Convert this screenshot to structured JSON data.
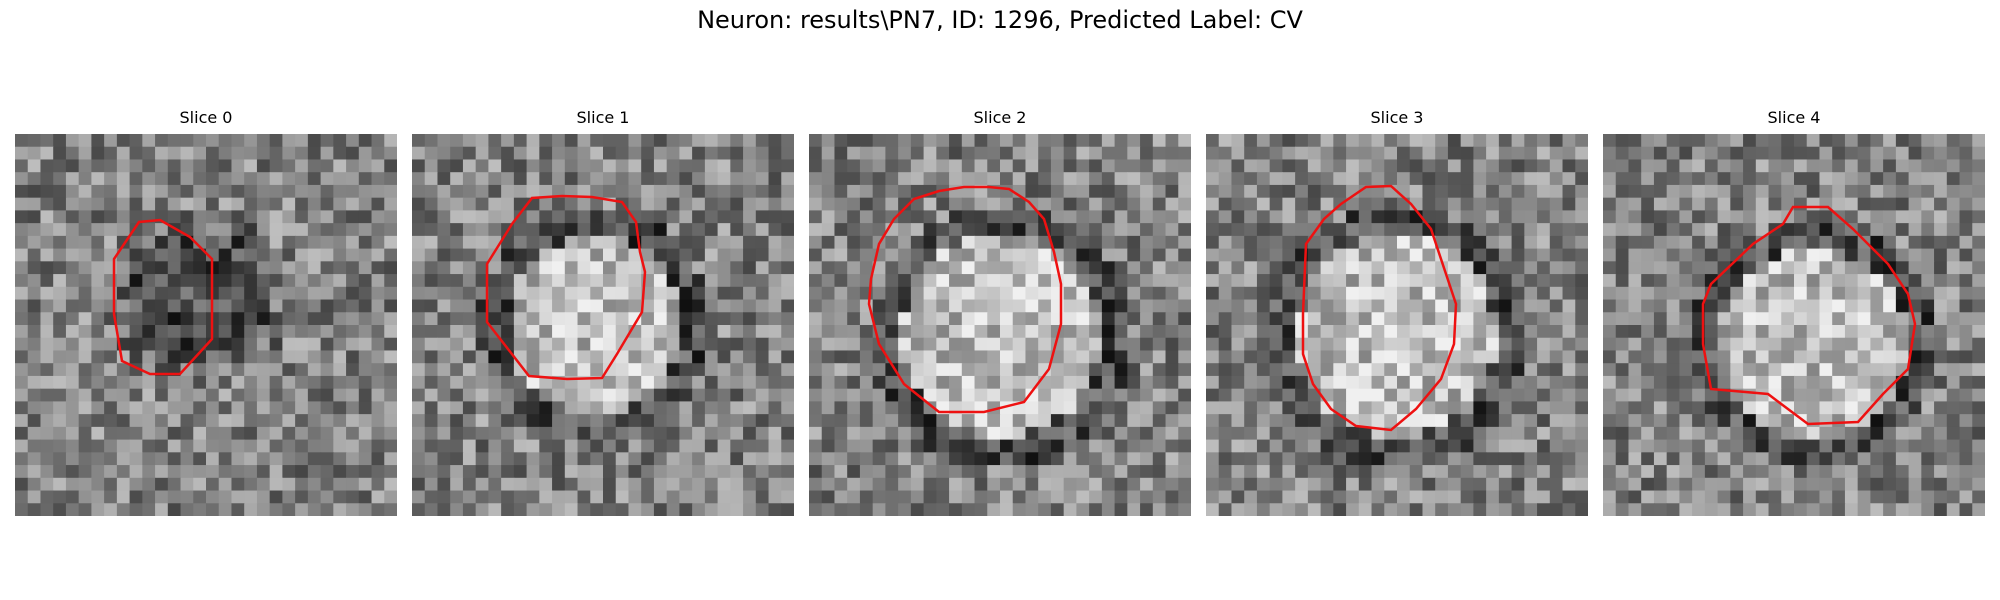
{
  "figure": {
    "title": "Neuron: results\\PN7, ID: 1296, Predicted Label: CV"
  },
  "panels": [
    {
      "title": "Slice 0",
      "contour_color": "#ee1111",
      "blob": "dark",
      "seed": 11
    },
    {
      "title": "Slice 1",
      "contour_color": "#ee1111",
      "blob": "bright-ring",
      "seed": 23
    },
    {
      "title": "Slice 2",
      "contour_color": "#ee1111",
      "blob": "bright-ring",
      "seed": 37
    },
    {
      "title": "Slice 3",
      "contour_color": "#ee1111",
      "blob": "bright-ring",
      "seed": 41
    },
    {
      "title": "Slice 4",
      "contour_color": "#ee1111",
      "blob": "bright-ring",
      "seed": 53
    }
  ]
}
